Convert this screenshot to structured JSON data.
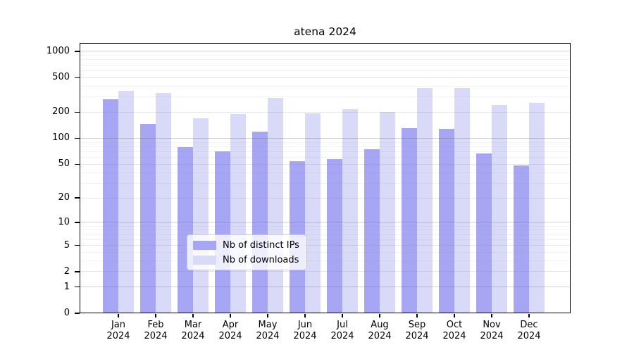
{
  "chart_data": {
    "type": "bar",
    "title": "atena 2024",
    "categories": [
      "Jan 2024",
      "Feb 2024",
      "Mar 2024",
      "Apr 2024",
      "May 2024",
      "Jun 2024",
      "Jul 2024",
      "Aug 2024",
      "Sep 2024",
      "Oct 2024",
      "Nov 2024",
      "Dec 2024"
    ],
    "x_tick_months": [
      "Jan",
      "Feb",
      "Mar",
      "Apr",
      "May",
      "Jun",
      "Jul",
      "Aug",
      "Sep",
      "Oct",
      "Nov",
      "Dec"
    ],
    "x_tick_year": "2024",
    "series": [
      {
        "name": "Nb of distinct IPs",
        "color": "#a6a6f4",
        "values": [
          282,
          147,
          79,
          71,
          119,
          54,
          57,
          75,
          131,
          129,
          67,
          48
        ]
      },
      {
        "name": "Nb of downloads",
        "color": "#d9d9f8",
        "values": [
          352,
          333,
          170,
          190,
          293,
          194,
          217,
          202,
          380,
          378,
          245,
          255
        ]
      }
    ],
    "y_scale": "log1p",
    "y_ticks": [
      0,
      1,
      2,
      5,
      10,
      20,
      50,
      100,
      200,
      500,
      1000
    ],
    "y_minor_ticks": [
      3,
      4,
      6,
      7,
      8,
      9,
      30,
      40,
      60,
      70,
      80,
      90,
      300,
      400,
      600,
      700,
      800,
      900
    ],
    "ylim": [
      0,
      1250
    ],
    "xlabel": "",
    "ylabel": "",
    "grid": true,
    "legend_position": "lower center",
    "axis_color": "#000000"
  }
}
